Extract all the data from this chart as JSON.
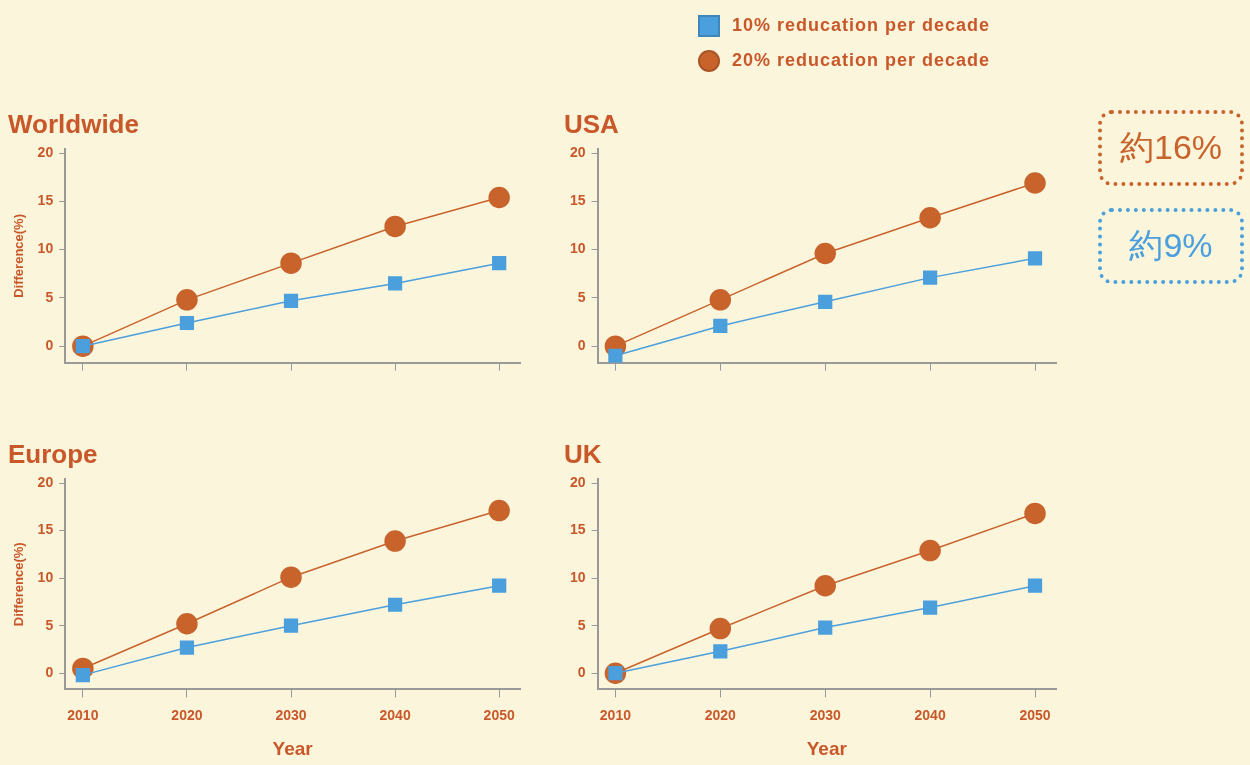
{
  "chart_data": [
    {
      "type": "line",
      "title": "Worldwide",
      "ylabel": "Difference(%)",
      "x": [
        2010,
        2020,
        2030,
        2040,
        2050
      ],
      "xlim": [
        2008.3,
        2052
      ],
      "xticks": [
        2010,
        2020,
        2030,
        2040,
        2050
      ],
      "ylim": [
        -1.7,
        20.4
      ],
      "yticks": [
        0,
        5,
        10,
        15,
        20
      ],
      "tick_labels": "y",
      "legend": "top",
      "series": [
        {
          "name": "10% reducation per decade",
          "color": "#4a9fdc",
          "marker": "square",
          "values": [
            0,
            2.4,
            4.7,
            6.5,
            8.6
          ]
        },
        {
          "name": "20% reducation per decade",
          "color": "#c8632c",
          "marker": "circle",
          "values": [
            0,
            4.8,
            8.6,
            12.4,
            15.4
          ]
        }
      ]
    },
    {
      "type": "line",
      "title": "USA",
      "x": [
        2010,
        2020,
        2030,
        2040,
        2050
      ],
      "xlim": [
        2008.3,
        2052
      ],
      "xticks": [
        2010,
        2020,
        2030,
        2040,
        2050
      ],
      "ylim": [
        -1.7,
        20.4
      ],
      "yticks": [
        0,
        5,
        10,
        15,
        20
      ],
      "tick_labels": "y",
      "series": [
        {
          "color": "#4a9fdc",
          "marker": "square",
          "values": [
            -1.0,
            2.1,
            4.6,
            7.1,
            9.1
          ]
        },
        {
          "color": "#c8632c",
          "marker": "circle",
          "values": [
            0,
            4.8,
            9.6,
            13.3,
            16.9
          ]
        }
      ]
    },
    {
      "type": "line",
      "title": "Europe",
      "ylabel": "Difference(%)",
      "xlabel": "Year",
      "x": [
        2010,
        2020,
        2030,
        2040,
        2050
      ],
      "xlim": [
        2008.3,
        2052
      ],
      "xticks": [
        2010,
        2020,
        2030,
        2040,
        2050
      ],
      "ylim": [
        -1.7,
        20.4
      ],
      "yticks": [
        0,
        5,
        10,
        15,
        20
      ],
      "series": [
        {
          "color": "#4a9fdc",
          "marker": "square",
          "values": [
            -0.2,
            2.7,
            5.0,
            7.2,
            9.2
          ]
        },
        {
          "color": "#c8632c",
          "marker": "circle",
          "values": [
            0.5,
            5.2,
            10.1,
            13.9,
            17.1
          ]
        }
      ]
    },
    {
      "type": "line",
      "title": "UK",
      "xlabel": "Year",
      "x": [
        2010,
        2020,
        2030,
        2040,
        2050
      ],
      "xlim": [
        2008.3,
        2052
      ],
      "xticks": [
        2010,
        2020,
        2030,
        2040,
        2050
      ],
      "ylim": [
        -1.7,
        20.4
      ],
      "yticks": [
        0,
        5,
        10,
        15,
        20
      ],
      "series": [
        {
          "color": "#4a9fdc",
          "marker": "square",
          "values": [
            0,
            2.3,
            4.8,
            6.9,
            9.2
          ]
        },
        {
          "color": "#c8632c",
          "marker": "circle",
          "values": [
            0,
            4.7,
            9.2,
            12.9,
            16.8
          ]
        }
      ]
    },
    {
      "type": "other",
      "annotations": [
        "約16%",
        "約9%"
      ],
      "colors": [
        "#c8632c",
        "#4a9fdc"
      ]
    }
  ]
}
